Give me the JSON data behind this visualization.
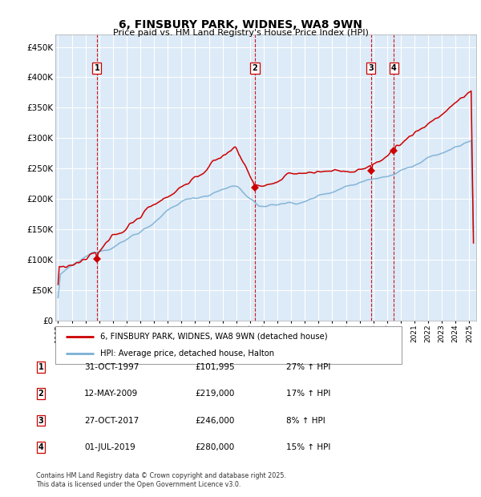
{
  "title": "6, FINSBURY PARK, WIDNES, WA8 9WN",
  "subtitle": "Price paid vs. HM Land Registry's House Price Index (HPI)",
  "ytick_values": [
    0,
    50000,
    100000,
    150000,
    200000,
    250000,
    300000,
    350000,
    400000,
    450000
  ],
  "ylim": [
    0,
    470000
  ],
  "xlim_start": 1994.8,
  "xlim_end": 2025.5,
  "background_color": "#ddeaf7",
  "grid_color": "#ffffff",
  "red_line_color": "#cc0000",
  "blue_line_color": "#7ab0d4",
  "dashed_line_color": "#cc0000",
  "transaction_box_color": "#cc0000",
  "transactions": [
    {
      "id": 1,
      "date": "31-OCT-1997",
      "price": 101995,
      "pct": "27%",
      "year": 1997.83
    },
    {
      "id": 2,
      "date": "12-MAY-2009",
      "price": 219000,
      "pct": "17%",
      "year": 2009.36
    },
    {
      "id": 3,
      "date": "27-OCT-2017",
      "price": 246000,
      "pct": "8%",
      "year": 2017.83
    },
    {
      "id": 4,
      "date": "01-JUL-2019",
      "price": 280000,
      "pct": "15%",
      "year": 2019.5
    }
  ],
  "legend_entries": [
    "6, FINSBURY PARK, WIDNES, WA8 9WN (detached house)",
    "HPI: Average price, detached house, Halton"
  ],
  "footer_text": "Contains HM Land Registry data © Crown copyright and database right 2025.\nThis data is licensed under the Open Government Licence v3.0.",
  "table_rows": [
    [
      "1",
      "31-OCT-1997",
      "£101,995",
      "27% ↑ HPI"
    ],
    [
      "2",
      "12-MAY-2009",
      "£219,000",
      "17% ↑ HPI"
    ],
    [
      "3",
      "27-OCT-2017",
      "£246,000",
      "8% ↑ HPI"
    ],
    [
      "4",
      "01-JUL-2019",
      "£280,000",
      "15% ↑ HPI"
    ]
  ]
}
